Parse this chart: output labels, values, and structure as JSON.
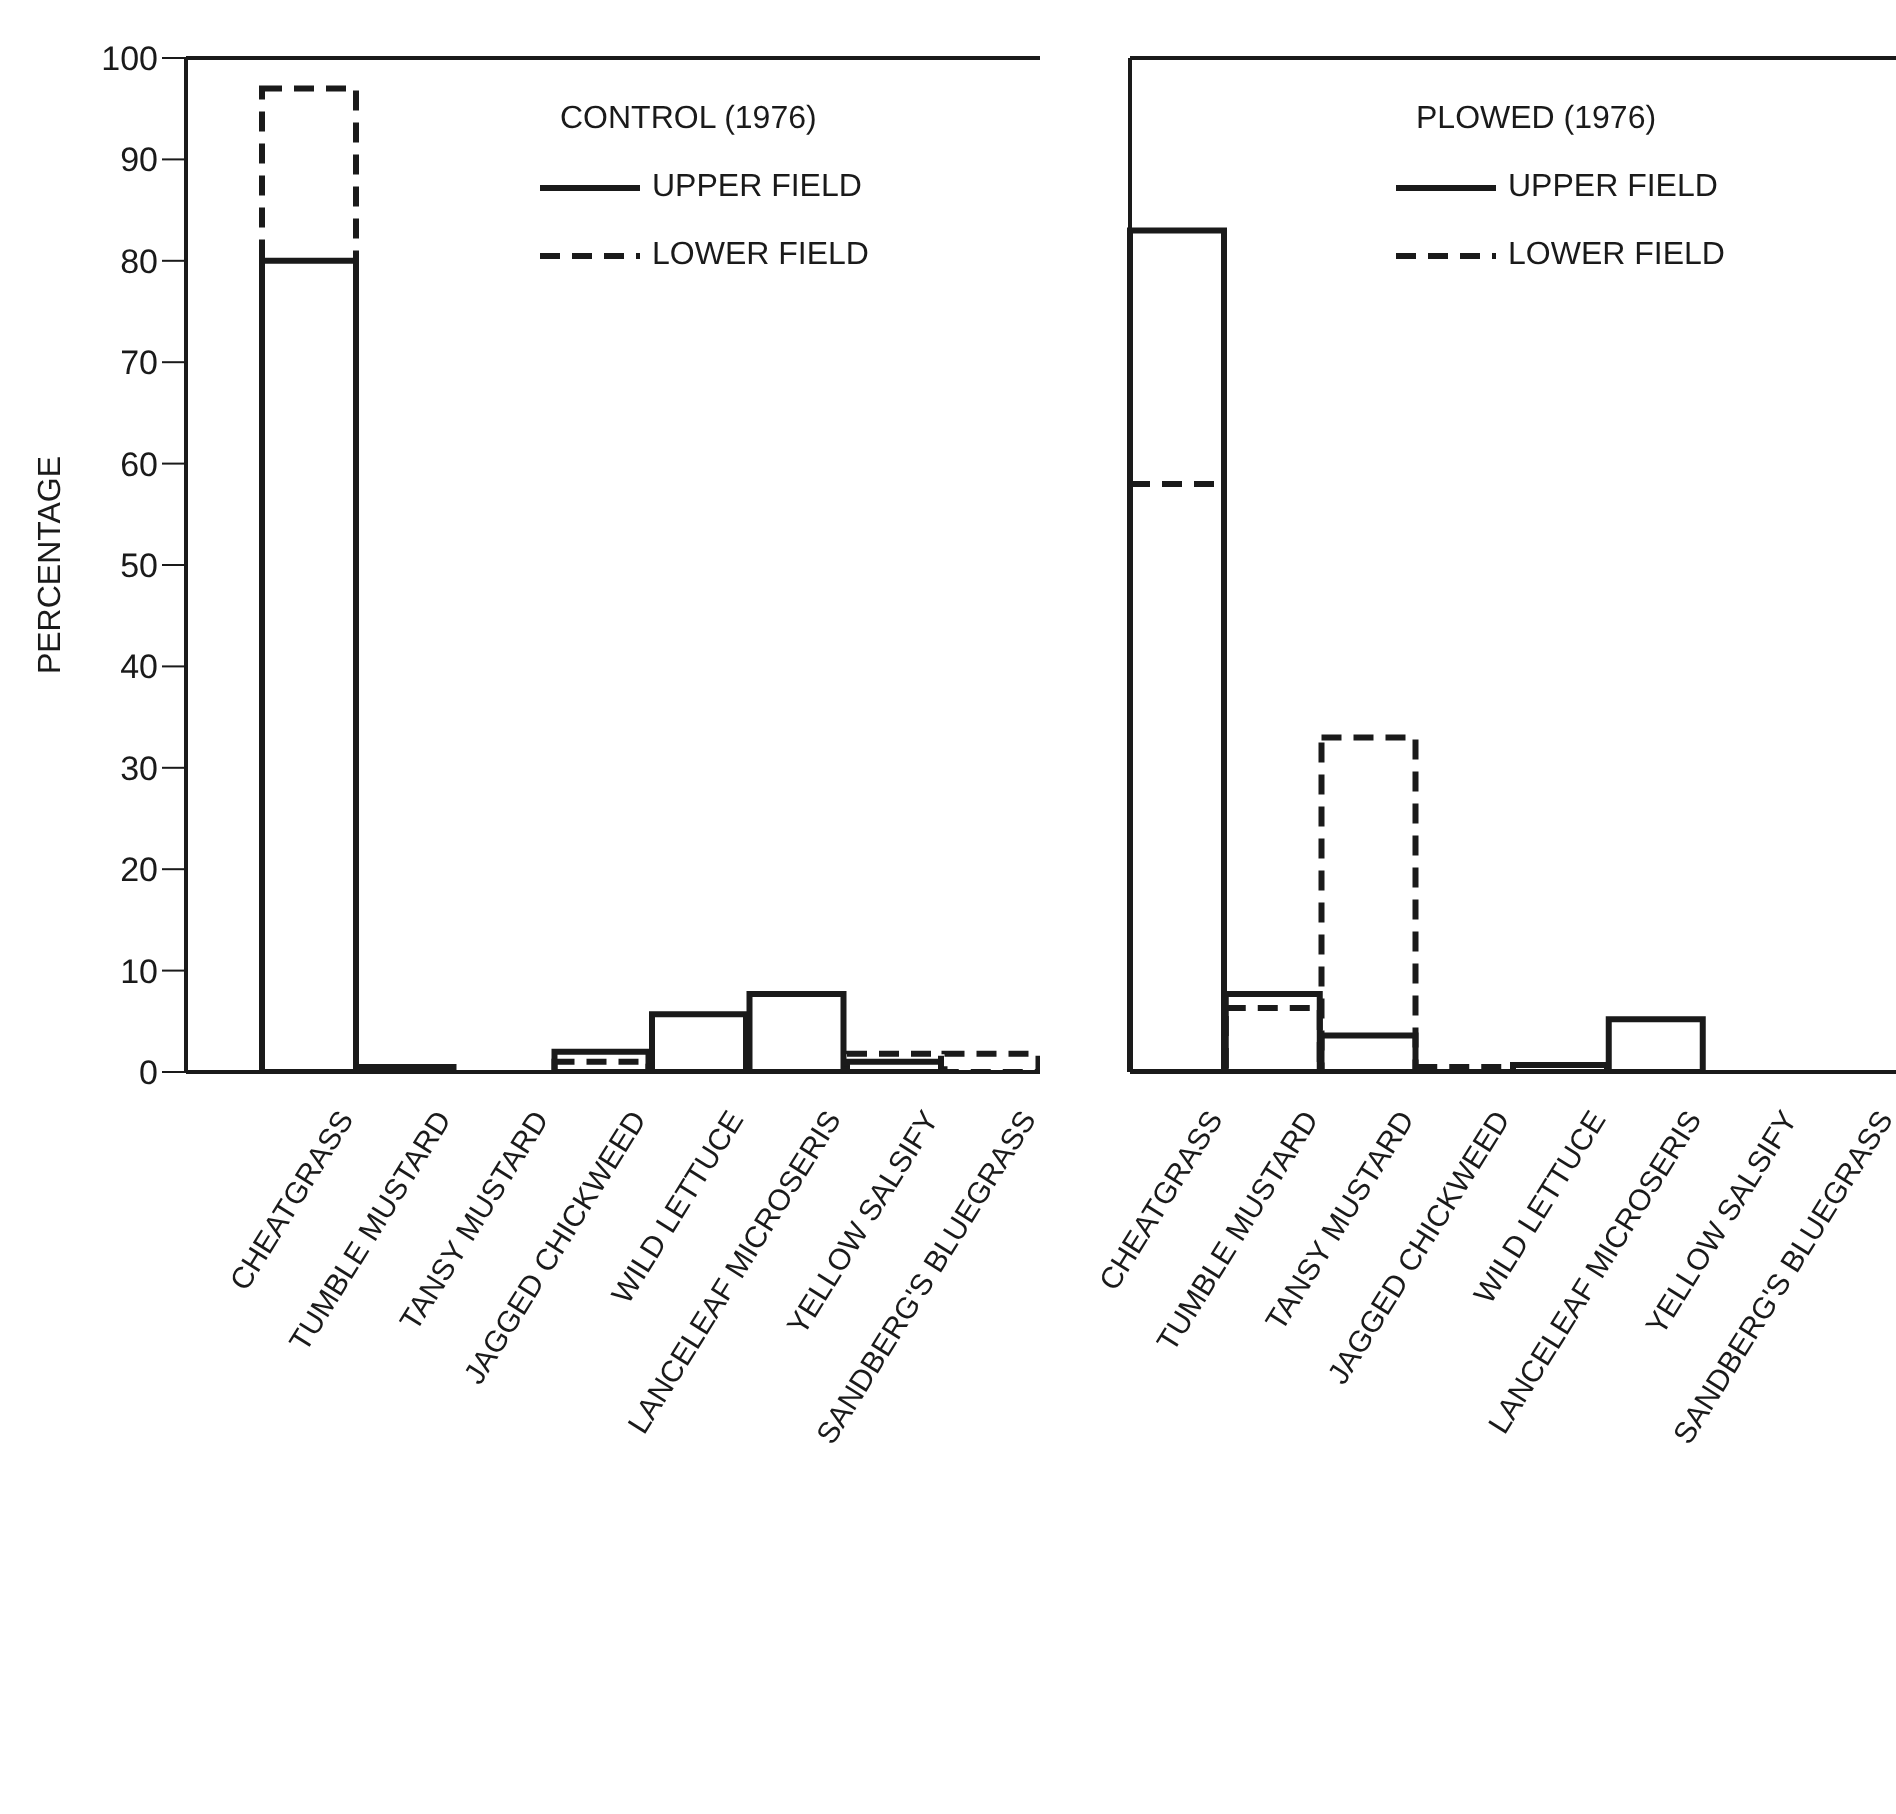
{
  "chart_data": [
    {
      "type": "bar",
      "title": "CONTROL (1976)",
      "ylabel": "PERCENTAGE",
      "categories": [
        "CHEATGRASS",
        "TUMBLE MUSTARD",
        "TANSY MUSTARD",
        "JAGGED CHICKWEED",
        "WILD LETTUCE",
        "LANCELEAF MICROSERIS",
        "YELLOW SALSIFY",
        "SANDBERG'S BLUEGRASS"
      ],
      "series": [
        {
          "name": "UPPER FIELD",
          "color": "#1a1a1a",
          "line_style": "solid",
          "values": [
            80,
            0.5,
            null,
            2,
            5.7,
            7.7,
            1,
            null
          ]
        },
        {
          "name": "LOWER FIELD",
          "color": "#1a1a1a",
          "line_style": "dashed",
          "values": [
            97,
            null,
            null,
            1,
            null,
            null,
            1.8,
            1.8
          ]
        }
      ],
      "ylim": [
        0,
        100
      ],
      "yticks": [
        0,
        10,
        20,
        30,
        40,
        50,
        60,
        70,
        80,
        90,
        100
      ],
      "legend": "top right",
      "grid": false
    },
    {
      "type": "bar",
      "title": "PLOWED (1976)",
      "categories": [
        "CHEATGRASS",
        "TUMBLE MUSTARD",
        "TANSY MUSTARD",
        "JAGGED CHICKWEED",
        "WILD LETTUCE",
        "LANCELEAF MICROSERIS",
        "YELLOW SALSIFY",
        "SANDBERG'S BLUEGRASS"
      ],
      "series": [
        {
          "name": "UPPER FIELD",
          "color": "#1a1a1a",
          "line_style": "solid",
          "values": [
            83,
            7.7,
            3.6,
            null,
            0.7,
            5.2,
            null,
            null
          ]
        },
        {
          "name": "LOWER FIELD",
          "color": "#1a1a1a",
          "line_style": "dashed",
          "values": [
            58,
            6.3,
            33,
            0.5,
            null,
            null,
            null,
            null
          ]
        }
      ],
      "ylim": [
        0,
        100
      ],
      "yticks": [
        0,
        10,
        20,
        30,
        40,
        50,
        60,
        70,
        80,
        90,
        100
      ],
      "legend": "top right",
      "grid": false,
      "tick_labels": "x"
    }
  ]
}
